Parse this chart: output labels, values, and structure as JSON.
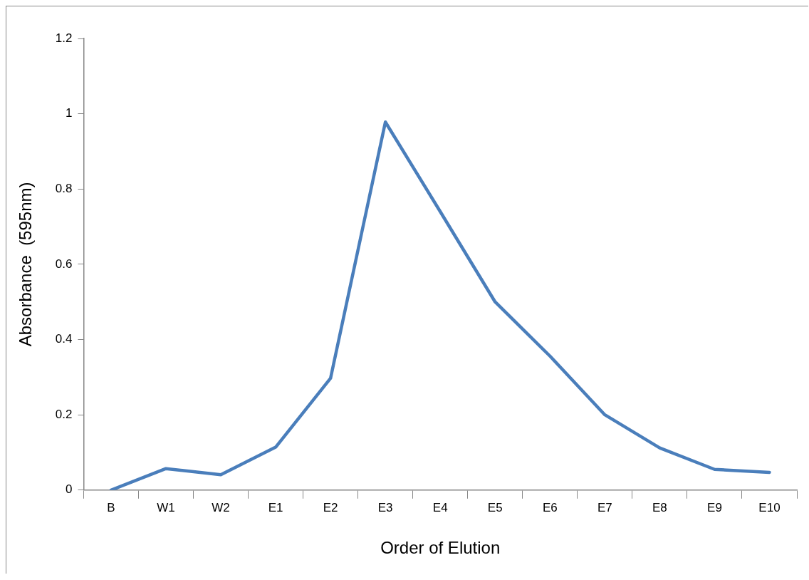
{
  "chart_data": {
    "type": "line",
    "xlabel": "Order of Elution",
    "ylabel": "Absorbance  (595nm)",
    "categories": [
      "B",
      "W1",
      "W2",
      "E1",
      "E2",
      "E3",
      "E4",
      "E5",
      "E6",
      "E7",
      "E8",
      "E9",
      "E10"
    ],
    "series": [
      {
        "color": "#4a7ebb",
        "values": [
          0,
          0.057,
          0.041,
          0.114,
          0.297,
          0.978,
          0.74,
          0.5,
          0.356,
          0.2,
          0.112,
          0.055,
          0.047
        ]
      }
    ],
    "ylim": [
      0,
      1.2
    ],
    "yticks": [
      0,
      0.2,
      0.4,
      0.6,
      0.8,
      1,
      1.2
    ],
    "grid": false,
    "legend": false,
    "marker": "none",
    "line_style": "solid"
  }
}
